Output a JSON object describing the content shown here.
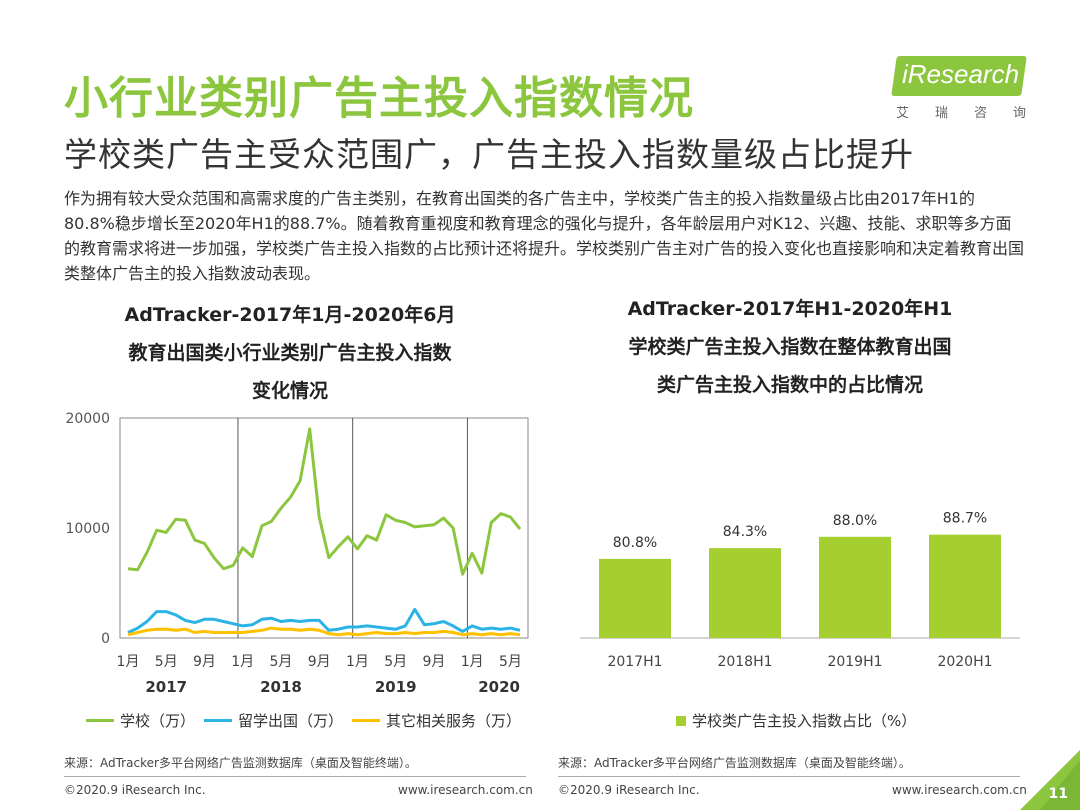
{
  "header": {
    "title": "小行业类别广告主投入指数情况",
    "subtitle": "学校类广告主受众范围广，广告主投入指数量级占比提升",
    "logo_text": "iResearch",
    "logo_sub": "艾瑞咨询"
  },
  "description": "作为拥有较大受众范围和高需求度的广告主类别，在教育出国类的各广告主中，学校类广告主的投入指数量级占比由2017年H1的80.8%稳步增长至2020年H1的88.7%。随着教育重视度和教育理念的强化与提升，各年龄层用户对K12、兴趣、技能、求职等多方面的教育需求将进一步加强，学校类广告主投入指数的占比预计还将提升。学校类别广告主对广告的投入变化也直接影响和决定着教育出国类整体广告主的投入指数波动表现。",
  "colors": {
    "accent": "#8cc63f",
    "school": "#8cc63f",
    "abroad": "#2bb3e6",
    "other": "#ffc000",
    "bar": "#a5cf2e"
  },
  "chart_data": [
    {
      "type": "line",
      "title_lines": [
        "AdTracker-2017年1月-2020年6月",
        "教育出国类小行业类别广告主投入指数",
        "变化情况"
      ],
      "x": [
        "2017-01",
        "2017-02",
        "2017-03",
        "2017-04",
        "2017-05",
        "2017-06",
        "2017-07",
        "2017-08",
        "2017-09",
        "2017-10",
        "2017-11",
        "2017-12",
        "2018-01",
        "2018-02",
        "2018-03",
        "2018-04",
        "2018-05",
        "2018-06",
        "2018-07",
        "2018-08",
        "2018-09",
        "2018-10",
        "2018-11",
        "2018-12",
        "2019-01",
        "2019-02",
        "2019-03",
        "2019-04",
        "2019-05",
        "2019-06",
        "2019-07",
        "2019-08",
        "2019-09",
        "2019-10",
        "2019-11",
        "2019-12",
        "2020-01",
        "2020-02",
        "2020-03",
        "2020-04",
        "2020-05",
        "2020-06"
      ],
      "x_tick_labels": [
        "1月",
        "5月",
        "9月",
        "1月",
        "5月",
        "9月",
        "1月",
        "5月",
        "9月",
        "1月",
        "5月"
      ],
      "x_tick_index": [
        0,
        4,
        8,
        12,
        16,
        20,
        24,
        28,
        32,
        36,
        40
      ],
      "year_labels": [
        "2017",
        "2018",
        "2019",
        "2020"
      ],
      "year_label_index": [
        4,
        16,
        28,
        41
      ],
      "year_dividers_index": [
        11.5,
        23.5,
        35.5
      ],
      "ylim": [
        0,
        20000
      ],
      "y_ticks": [
        0,
        10000,
        20000
      ],
      "series": [
        {
          "name": "学校（万）",
          "color": "#8cc63f",
          "values": [
            6300,
            6200,
            7800,
            9800,
            9600,
            10800,
            10700,
            8900,
            8600,
            7300,
            6300,
            6600,
            8200,
            7400,
            10200,
            10600,
            11800,
            12800,
            14300,
            19000,
            11000,
            7300,
            8300,
            9200,
            8100,
            9300,
            8900,
            11200,
            10700,
            10500,
            10100,
            10200,
            10300,
            10900,
            10000,
            5800,
            7700,
            5900,
            10500,
            11300,
            11000,
            9900
          ]
        },
        {
          "name": "留学出国（万）",
          "color": "#2bb3e6",
          "values": [
            500,
            900,
            1500,
            2400,
            2400,
            2100,
            1600,
            1400,
            1700,
            1700,
            1500,
            1300,
            1100,
            1200,
            1700,
            1800,
            1500,
            1600,
            1500,
            1600,
            1600,
            700,
            800,
            1000,
            1000,
            1100,
            1000,
            900,
            800,
            1100,
            2600,
            1200,
            1300,
            1500,
            1100,
            600,
            1100,
            800,
            900,
            800,
            900,
            700
          ]
        },
        {
          "name": "其它相关服务（万）",
          "color": "#ffc000",
          "values": [
            300,
            500,
            700,
            800,
            800,
            700,
            800,
            500,
            600,
            500,
            500,
            500,
            500,
            600,
            700,
            900,
            800,
            800,
            700,
            800,
            700,
            400,
            300,
            400,
            300,
            400,
            500,
            400,
            400,
            500,
            400,
            500,
            500,
            600,
            500,
            300,
            400,
            300,
            400,
            300,
            400,
            300
          ]
        }
      ]
    },
    {
      "type": "bar",
      "title_lines": [
        "AdTracker-2017年H1-2020年H1",
        "学校类广告主投入指数在整体教育出国",
        "类广告主投入指数中的占比情况"
      ],
      "categories": [
        "2017H1",
        "2018H1",
        "2019H1",
        "2020H1"
      ],
      "values": [
        80.8,
        84.3,
        88.0,
        88.7
      ],
      "value_labels": [
        "80.8%",
        "84.3%",
        "88.0%",
        "88.7%"
      ],
      "legend": "学校类广告主投入指数占比（%）"
    }
  ],
  "sources": {
    "left": "来源：AdTracker多平台网络广告监测数据库（桌面及智能终端）。",
    "right": "来源：AdTracker多平台网络广告监测数据库（桌面及智能终端）。"
  },
  "footer": {
    "left_copyright": "©2020.9 iResearch Inc.",
    "left_url": "www.iresearch.com.cn",
    "right_copyright": "©2020.9 iResearch Inc.",
    "right_url": "www.iresearch.com.cn",
    "page_number": "11"
  }
}
